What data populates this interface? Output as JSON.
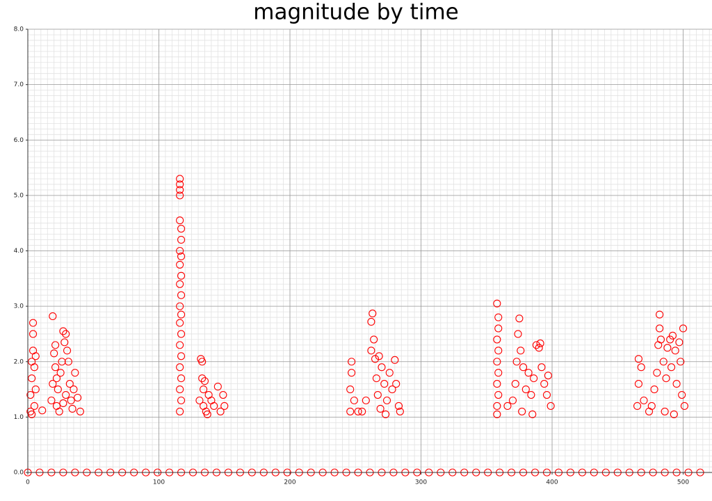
{
  "chart_data": {
    "type": "scatter",
    "title": "magnitude by time",
    "color": "#ff0000",
    "grid": true,
    "minor_grid": true,
    "xlim": [
      0,
      522
    ],
    "ylim": [
      0,
      8
    ],
    "xticks": [
      0,
      100,
      200,
      300,
      400,
      500
    ],
    "yticks": [
      {
        "value": 0,
        "label": "0.0"
      },
      {
        "value": 1,
        "label": "1.0"
      },
      {
        "value": 2,
        "label": "2.0"
      },
      {
        "value": 3,
        "label": "3.0"
      },
      {
        "value": 4,
        "label": "4.0"
      },
      {
        "value": 5,
        "label": "5.0"
      },
      {
        "value": 6,
        "label": "6.0"
      },
      {
        "value": 7,
        "label": "7.0"
      },
      {
        "value": 8,
        "label": "8.0"
      }
    ],
    "x": [
      2,
      2,
      3,
      3,
      4,
      4,
      4,
      5,
      5,
      6,
      6,
      3,
      11,
      18,
      19,
      19,
      20,
      21,
      21,
      22,
      23,
      24,
      25,
      26,
      27,
      28,
      29,
      29,
      30,
      31,
      32,
      33,
      34,
      35,
      36,
      38,
      40,
      22,
      27,
      116,
      116,
      116,
      116,
      116,
      117,
      117,
      116,
      117,
      116,
      117,
      116,
      117,
      116,
      117,
      116,
      117,
      116,
      117,
      116,
      117,
      116,
      117,
      116,
      132,
      133,
      133,
      134,
      135,
      134,
      136,
      138,
      140,
      142,
      145,
      147,
      149,
      150,
      131,
      137,
      246,
      246,
      247,
      247,
      249,
      252,
      255,
      258,
      262,
      262,
      263,
      264,
      265,
      266,
      267,
      268,
      270,
      272,
      274,
      276,
      278,
      280,
      281,
      283,
      284,
      269,
      273,
      358,
      359,
      359,
      358,
      359,
      358,
      359,
      358,
      359,
      358,
      358,
      366,
      370,
      372,
      373,
      374,
      375,
      376,
      378,
      380,
      382,
      384,
      386,
      388,
      390,
      391,
      392,
      394,
      396,
      397,
      399,
      377,
      385,
      465,
      466,
      466,
      468,
      470,
      474,
      476,
      478,
      480,
      481,
      482,
      482,
      483,
      485,
      487,
      488,
      490,
      491,
      492,
      494,
      495,
      497,
      498,
      499,
      500,
      501,
      486,
      493,
      0,
      9,
      18,
      27,
      36,
      45,
      54,
      63,
      72,
      81,
      90,
      99,
      108,
      117,
      126,
      135,
      144,
      153,
      162,
      171,
      180,
      189,
      198,
      207,
      216,
      225,
      234,
      243,
      252,
      261,
      270,
      279,
      288,
      297,
      306,
      315,
      324,
      333,
      342,
      351,
      360,
      369,
      378,
      387,
      396,
      405,
      414,
      423,
      432,
      441,
      450,
      459,
      468,
      477,
      486,
      495,
      504,
      513
    ],
    "y": [
      1.1,
      1.4,
      1.7,
      2.0,
      2.2,
      2.5,
      2.7,
      1.2,
      1.9,
      2.1,
      1.5,
      1.05,
      1.12,
      1.3,
      2.82,
      1.6,
      2.15,
      2.3,
      1.9,
      1.2,
      1.5,
      1.1,
      1.8,
      2.0,
      2.55,
      2.35,
      2.5,
      1.4,
      2.2,
      2.0,
      1.6,
      1.3,
      1.15,
      1.5,
      1.8,
      1.35,
      1.1,
      1.7,
      1.25,
      5.3,
      5.2,
      5.1,
      5.0,
      4.55,
      4.4,
      4.2,
      4.0,
      3.9,
      3.75,
      3.55,
      3.4,
      3.2,
      3.0,
      2.85,
      2.7,
      2.5,
      2.3,
      2.1,
      1.9,
      1.7,
      1.5,
      1.3,
      1.1,
      2.05,
      2.0,
      1.7,
      1.5,
      1.65,
      1.2,
      1.1,
      1.4,
      1.3,
      1.2,
      1.55,
      1.1,
      1.4,
      1.2,
      1.3,
      1.05,
      1.1,
      1.5,
      1.8,
      2.0,
      1.3,
      1.1,
      1.1,
      1.3,
      2.2,
      2.72,
      2.87,
      2.4,
      2.05,
      1.7,
      1.4,
      2.1,
      1.9,
      1.6,
      1.3,
      1.8,
      1.5,
      2.03,
      1.6,
      1.2,
      1.1,
      1.15,
      1.05,
      3.05,
      2.8,
      2.6,
      2.4,
      2.2,
      2.0,
      1.8,
      1.6,
      1.4,
      1.2,
      1.05,
      1.2,
      1.3,
      1.6,
      2.0,
      2.5,
      2.78,
      2.2,
      1.9,
      1.5,
      1.8,
      1.4,
      1.7,
      2.3,
      2.25,
      2.33,
      1.9,
      1.6,
      1.4,
      1.75,
      1.2,
      1.1,
      1.05,
      1.2,
      1.6,
      2.05,
      1.9,
      1.3,
      1.1,
      1.2,
      1.5,
      1.8,
      2.3,
      2.85,
      2.6,
      2.4,
      2.0,
      1.7,
      2.25,
      2.4,
      1.9,
      2.47,
      2.2,
      1.6,
      2.35,
      2.0,
      1.4,
      2.6,
      1.2,
      1.1,
      1.05,
      0,
      0,
      0,
      0,
      0,
      0,
      0,
      0,
      0,
      0,
      0,
      0,
      0,
      0,
      0,
      0,
      0,
      0,
      0,
      0,
      0,
      0,
      0,
      0,
      0,
      0,
      0,
      0,
      0,
      0,
      0,
      0,
      0,
      0,
      0,
      0,
      0,
      0,
      0,
      0,
      0,
      0,
      0,
      0,
      0,
      0,
      0,
      0,
      0,
      0,
      0,
      0,
      0,
      0,
      0,
      0,
      0,
      0
    ]
  }
}
